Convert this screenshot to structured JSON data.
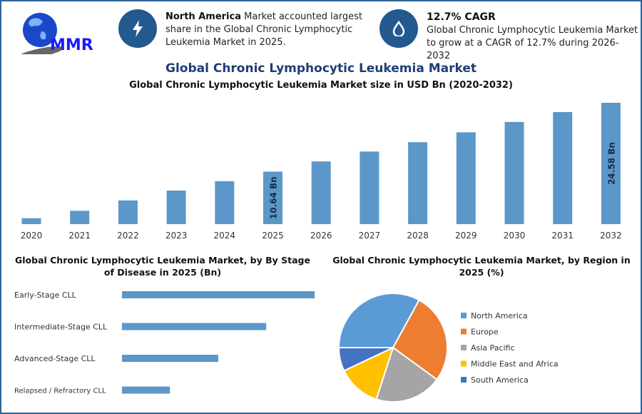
{
  "logo": {
    "text": "MMR"
  },
  "card1": {
    "icon": "lightning-bolt-icon",
    "bold": "North America",
    "text": " Market accounted largest share in the Global Chronic Lymphocytic Leukemia Market in 2025."
  },
  "card2": {
    "icon": "drop-icon",
    "bold": "12.7% CAGR",
    "text": "Global Chronic Lymphocytic Leukemia Market to grow at a CAGR of 12.7% during 2026-2032"
  },
  "title": "Global Chronic Lymphocytic Leukemia Market",
  "colors": {
    "bar": "#5b97c9",
    "accent": "#22598f",
    "title": "#1f3d74"
  },
  "chart_data": [
    {
      "type": "bar",
      "title": "Global Chronic Lymphocytic Leukemia Market size in USD Bn (2020-2032)",
      "categories": [
        "2020",
        "2021",
        "2022",
        "2023",
        "2024",
        "2025",
        "2026",
        "2027",
        "2028",
        "2029",
        "2030",
        "2031",
        "2032"
      ],
      "values": [
        1.2,
        2.7,
        4.8,
        6.8,
        8.7,
        10.64,
        12.7,
        14.7,
        16.6,
        18.6,
        20.7,
        22.7,
        24.58
      ],
      "data_labels": {
        "2025": "10.64 Bn",
        "2032": "24.58 Bn"
      },
      "ylim": [
        0,
        25
      ],
      "grid": false
    },
    {
      "type": "bar",
      "orientation": "horizontal",
      "title": "Global Chronic Lymphocytic Leukemia Market, by By Stage of Disease in 2025 (Bn)",
      "categories": [
        "Early-Stage CLL",
        "Intermediate-Stage CLL",
        "Advanced-Stage CLL",
        "Relapsed / Refractory CLL"
      ],
      "values": [
        4.26,
        3.19,
        2.13,
        1.06
      ],
      "grid": false
    },
    {
      "type": "pie",
      "title": "Global Chronic Lymphocytic Leukemia Market, by Region in 2025 (%)",
      "categories": [
        "North America",
        "Europe",
        "Asia Pacific",
        "Middle East and Africa",
        "South America"
      ],
      "values": [
        33,
        27,
        20,
        13,
        7
      ],
      "colors": [
        "#5b9bd5",
        "#ed7d31",
        "#a5a5a5",
        "#ffc000",
        "#4472c4"
      ],
      "legend": "right"
    }
  ]
}
